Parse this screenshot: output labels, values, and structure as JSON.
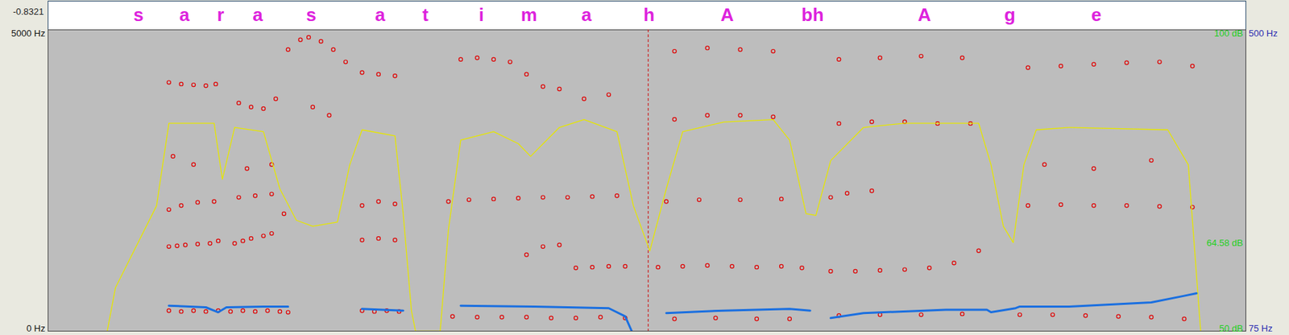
{
  "chart_data": {
    "type": "spectrogram",
    "waveform_min": -0.8321,
    "tier": {
      "labels": [
        "s",
        "a",
        "r",
        "a",
        "s",
        "a",
        "t",
        "i",
        "m",
        "a",
        "h",
        "A",
        "bh",
        "A",
        "g",
        "e"
      ],
      "x": [
        0.11,
        0.166,
        0.21,
        0.255,
        0.32,
        0.404,
        0.459,
        0.527,
        0.585,
        0.655,
        0.731,
        0.826,
        0.93,
        1.066,
        1.17,
        1.275
      ],
      "color": "#dd22dd"
    },
    "xlim": [
      0,
      1.457
    ],
    "ylim": [
      0,
      5000
    ],
    "yticks": [
      {
        "value": 5000,
        "label": "5000 Hz"
      },
      {
        "value": 0,
        "label": "0 Hz"
      }
    ],
    "y2lim": [
      50,
      100
    ],
    "y2ticks": [
      {
        "value": 100,
        "label": "100 dB"
      },
      {
        "value": 64.58,
        "label": "64.58 dB"
      },
      {
        "value": 50,
        "label": "50 dB"
      }
    ],
    "y3lim": [
      75,
      500
    ],
    "y3ticks": [
      {
        "value": 500,
        "label": "500 Hz"
      },
      {
        "value": 75,
        "label": "75 Hz"
      }
    ],
    "tick_labels": "y",
    "cursor": 0.73,
    "series": [
      {
        "type": "scatter",
        "color": "#e00000",
        "marker": "circle",
        "x": [
          0.147,
          0.162,
          0.177,
          0.192,
          0.207,
          0.222,
          0.237,
          0.252,
          0.267,
          0.282,
          0.292,
          0.147,
          0.157,
          0.167,
          0.182,
          0.197,
          0.207,
          0.227,
          0.237,
          0.247,
          0.262,
          0.272,
          0.147,
          0.162,
          0.182,
          0.202,
          0.232,
          0.252,
          0.272,
          0.287,
          0.152,
          0.177,
          0.242,
          0.272,
          0.147,
          0.162,
          0.177,
          0.192,
          0.204,
          0.232,
          0.247,
          0.262,
          0.277,
          0.292,
          0.307,
          0.317,
          0.332,
          0.347,
          0.362,
          0.322,
          0.342,
          0.382,
          0.397,
          0.412,
          0.427,
          0.382,
          0.402,
          0.422,
          0.382,
          0.402,
          0.422,
          0.382,
          0.402,
          0.422,
          0.492,
          0.522,
          0.552,
          0.582,
          0.612,
          0.642,
          0.672,
          0.702,
          0.487,
          0.512,
          0.542,
          0.572,
          0.602,
          0.632,
          0.662,
          0.692,
          0.502,
          0.522,
          0.542,
          0.562,
          0.582,
          0.602,
          0.622,
          0.652,
          0.682,
          0.582,
          0.602,
          0.622,
          0.642,
          0.662,
          0.682,
          0.702,
          0.742,
          0.772,
          0.802,
          0.832,
          0.862,
          0.892,
          0.917,
          0.762,
          0.812,
          0.862,
          0.902,
          0.752,
          0.792,
          0.842,
          0.892,
          0.762,
          0.802,
          0.842,
          0.882,
          0.762,
          0.802,
          0.842,
          0.882,
          0.952,
          0.982,
          1.012,
          1.042,
          1.072,
          1.102,
          1.132,
          0.962,
          1.012,
          1.062,
          1.112,
          0.952,
          0.972,
          1.002,
          0.962,
          1.002,
          1.042,
          1.082,
          1.122,
          0.962,
          1.012,
          1.062,
          1.112,
          1.182,
          1.222,
          1.262,
          1.302,
          1.342,
          1.382,
          1.192,
          1.232,
          1.272,
          1.312,
          1.352,
          1.392,
          1.192,
          1.232,
          1.272,
          1.312,
          1.352,
          1.392,
          1.212,
          1.272,
          1.342
        ],
        "values": [
          340,
          327,
          340,
          327,
          340,
          327,
          340,
          327,
          340,
          327,
          313,
          1403,
          1416,
          1430,
          1444,
          1457,
          1498,
          1457,
          1498,
          1539,
          1580,
          1621,
          2016,
          2084,
          2138,
          2152,
          2220,
          2247,
          2275,
          1948,
          2901,
          2765,
          2697,
          2765,
          4127,
          4100,
          4086,
          4072,
          4100,
          3786,
          3718,
          3691,
          3855,
          4672,
          4835,
          4876,
          4808,
          4672,
          4467,
          3718,
          3582,
          340,
          327,
          340,
          327,
          1512,
          1539,
          1512,
          2084,
          2152,
          2111,
          4290,
          4263,
          4236,
          245,
          232,
          232,
          232,
          218,
          218,
          232,
          218,
          2152,
          2179,
          2193,
          2206,
          2220,
          2220,
          2234,
          2247,
          4508,
          4535,
          4508,
          4467,
          4263,
          4059,
          4018,
          3855,
          3923,
          1267,
          1403,
          1430,
          1049,
          1062,
          1076,
          1076,
          1062,
          1076,
          1090,
          1076,
          1062,
          1076,
          1049,
          204,
          218,
          204,
          204,
          2152,
          2179,
          2179,
          2193,
          3514,
          3582,
          3582,
          3555,
          4644,
          4699,
          4672,
          4644,
          994,
          994,
          1008,
          1022,
          1049,
          1130,
          1335,
          259,
          272,
          272,
          286,
          2220,
          2288,
          2329,
          3446,
          3473,
          3473,
          3446,
          3446,
          4508,
          4535,
          4563,
          4535,
          272,
          272,
          259,
          245,
          232,
          204,
          2084,
          2098,
          2084,
          2084,
          2070,
          2057,
          4372,
          4399,
          4427,
          4454,
          4467,
          4399,
          2765,
          2697,
          2833
        ]
      },
      {
        "type": "line",
        "axis": "y2",
        "color": "#e6e600",
        "line_style": "solid",
        "x": [
          0.072,
          0.082,
          0.132,
          0.147,
          0.202,
          0.212,
          0.227,
          0.262,
          0.282,
          0.302,
          0.322,
          0.352,
          0.367,
          0.382,
          0.422,
          0.432,
          0.442,
          0.447,
          0.477,
          0.487,
          0.502,
          0.542,
          0.572,
          0.587,
          0.622,
          0.652,
          0.692,
          0.712,
          0.732,
          0.752,
          0.772,
          0.822,
          0.882,
          0.902,
          0.922,
          0.934,
          0.952,
          0.992,
          1.042,
          1.132,
          1.147,
          1.162,
          1.174,
          1.187,
          1.202,
          1.242,
          1.362,
          1.387,
          1.402
        ],
        "values": [
          50.0,
          57.2,
          70.8,
          84.5,
          84.5,
          75.2,
          83.8,
          83.1,
          73.6,
          68.4,
          67.4,
          68.1,
          77.6,
          83.4,
          82.4,
          69.5,
          53.4,
          50.0,
          50.0,
          66.8,
          81.7,
          83.1,
          81.1,
          79.0,
          83.8,
          85.1,
          83.1,
          70.8,
          63.3,
          73.6,
          83.1,
          84.7,
          85.1,
          81.7,
          69.5,
          69.2,
          78.3,
          83.8,
          84.5,
          84.5,
          77.6,
          67.4,
          64.7,
          77.6,
          83.4,
          83.8,
          83.4,
          77.6,
          50.0
        ]
      },
      {
        "type": "line",
        "axis": "y3",
        "color": "#1a6fe0",
        "line_style": "solid",
        "x": [
          0.147,
          0.192,
          0.207,
          0.217,
          0.262,
          0.292,
          0.32,
          0.382,
          0.432,
          0.48,
          0.502,
          0.592,
          0.682,
          0.702,
          0.71,
          0.74,
          0.752,
          0.822,
          0.902,
          0.927,
          0.94,
          0.952,
          0.992,
          1.092,
          1.142,
          1.147,
          1.177,
          1.182,
          1.242,
          1.342,
          1.382,
          1.397
        ],
        "values": [
          110.9,
          108.6,
          101.6,
          108.6,
          109.7,
          109.7,
          null,
          106.3,
          104.0,
          null,
          110.9,
          109.7,
          107.4,
          95.8,
          75.0,
          null,
          100.5,
          104.0,
          106.3,
          104.0,
          null,
          93.5,
          100.5,
          105.1,
          105.1,
          101.6,
          107.4,
          109.7,
          109.7,
          115.5,
          124.8,
          128.3
        ]
      }
    ]
  }
}
